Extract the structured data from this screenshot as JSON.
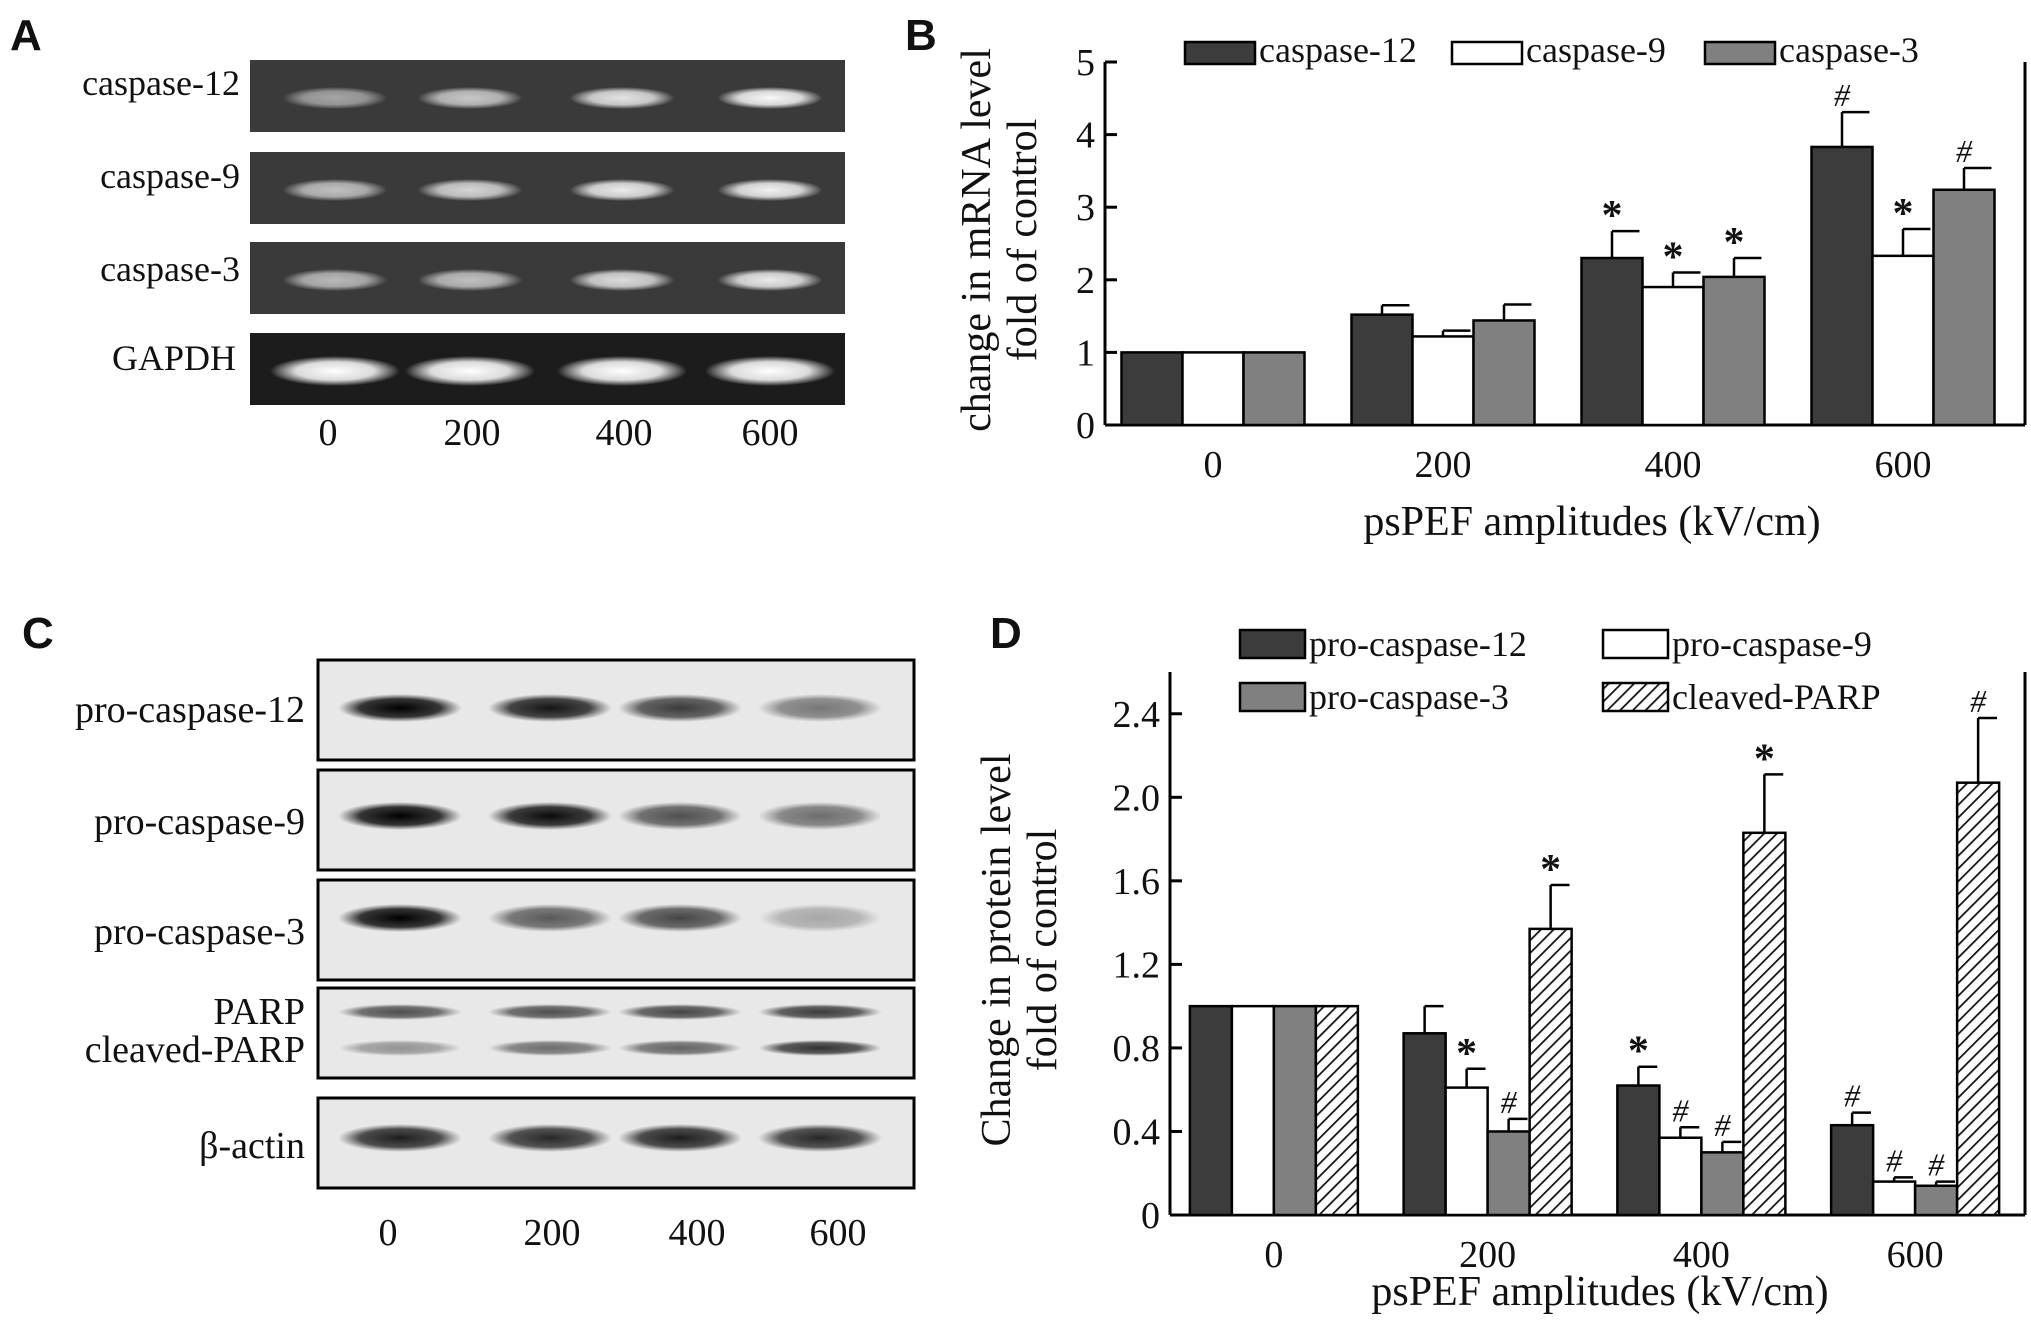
{
  "panels": {
    "A": "A",
    "B": "B",
    "C": "C",
    "D": "D"
  },
  "gel_a": {
    "row_labels": [
      "caspase-12",
      "caspase-9",
      "caspase-3",
      "GAPDH"
    ],
    "lane_labels": [
      "0",
      "200",
      "400",
      "600"
    ],
    "band_intensity": [
      [
        0.35,
        0.6,
        0.8,
        0.95
      ],
      [
        0.55,
        0.7,
        0.85,
        0.9
      ],
      [
        0.5,
        0.55,
        0.75,
        0.85
      ],
      [
        1.0,
        1.0,
        1.0,
        1.0
      ]
    ]
  },
  "blot_c": {
    "row_labels": [
      "pro-caspase-12",
      "pro-caspase-9",
      "pro-caspase-3",
      "PARP",
      "cleaved-PARP",
      "β-actin"
    ],
    "lane_labels": [
      "0",
      "200",
      "400",
      "600"
    ],
    "band_intensity": {
      "pro-caspase-12": [
        1.0,
        0.9,
        0.7,
        0.4
      ],
      "pro-caspase-9": [
        1.0,
        0.95,
        0.6,
        0.45
      ],
      "pro-caspase-3": [
        1.0,
        0.55,
        0.65,
        0.15
      ],
      "PARP": [
        0.6,
        0.6,
        0.65,
        0.7
      ],
      "cleaved-PARP": [
        0.25,
        0.45,
        0.5,
        0.75
      ],
      "β-actin": [
        0.85,
        0.8,
        0.85,
        0.8
      ]
    }
  },
  "chart_data": [
    {
      "panel": "B",
      "type": "bar",
      "categories": [
        "0",
        "200",
        "400",
        "600"
      ],
      "xlabel": "psPEF amplitudes (kV/cm)",
      "ylabel_line1": "change in mRNA level",
      "ylabel_line2": "fold of control",
      "ylim": [
        0,
        5
      ],
      "yticks": [
        "0",
        "1",
        "2",
        "3",
        "4",
        "5"
      ],
      "legend_position": "top",
      "series": [
        {
          "name": "caspase-12",
          "color": "#3c3c3c",
          "pattern": "solid",
          "values": [
            1.0,
            1.52,
            2.3,
            3.83
          ],
          "errors": [
            0,
            0.13,
            0.37,
            0.48
          ],
          "marks": [
            "",
            "",
            "*",
            "#"
          ]
        },
        {
          "name": "caspase-9",
          "color": "#ffffff",
          "pattern": "solid",
          "values": [
            1.0,
            1.22,
            1.9,
            2.33
          ],
          "errors": [
            0,
            0.08,
            0.2,
            0.37
          ],
          "marks": [
            "",
            "",
            "*",
            "*"
          ]
        },
        {
          "name": "caspase-3",
          "color": "#808080",
          "pattern": "solid",
          "values": [
            1.0,
            1.44,
            2.04,
            3.24
          ],
          "errors": [
            0,
            0.22,
            0.26,
            0.3
          ],
          "marks": [
            "",
            "",
            "*",
            "#"
          ]
        }
      ]
    },
    {
      "panel": "D",
      "type": "bar",
      "categories": [
        "0",
        "200",
        "400",
        "600"
      ],
      "xlabel": "psPEF amplitudes (kV/cm)",
      "ylabel_line1": "Change in protein level",
      "ylabel_line2": "fold of control",
      "ylim": [
        0,
        2.6
      ],
      "yticks": [
        "0",
        "0.4",
        "0.8",
        "1.2",
        "1.6",
        "2.0",
        "2.4"
      ],
      "legend_position": "top",
      "series": [
        {
          "name": "pro-caspase-12",
          "color": "#3c3c3c",
          "pattern": "solid",
          "values": [
            1.0,
            0.87,
            0.62,
            0.43
          ],
          "errors": [
            0,
            0.13,
            0.09,
            0.06
          ],
          "marks": [
            "",
            "",
            "*",
            "#"
          ]
        },
        {
          "name": "pro-caspase-9",
          "color": "#ffffff",
          "pattern": "solid",
          "values": [
            1.0,
            0.61,
            0.37,
            0.16
          ],
          "errors": [
            0,
            0.09,
            0.05,
            0.02
          ],
          "marks": [
            "",
            "*",
            "#",
            "#"
          ]
        },
        {
          "name": "pro-caspase-3",
          "color": "#808080",
          "pattern": "solid",
          "values": [
            1.0,
            0.4,
            0.3,
            0.14
          ],
          "errors": [
            0,
            0.06,
            0.05,
            0.02
          ],
          "marks": [
            "",
            "#",
            "#",
            "#"
          ]
        },
        {
          "name": "cleaved-PARP",
          "color": "#ffffff",
          "pattern": "hatch",
          "values": [
            1.0,
            1.37,
            1.83,
            2.07
          ],
          "errors": [
            0,
            0.21,
            0.28,
            0.31
          ],
          "marks": [
            "",
            "*",
            "*",
            "#"
          ]
        }
      ]
    }
  ]
}
